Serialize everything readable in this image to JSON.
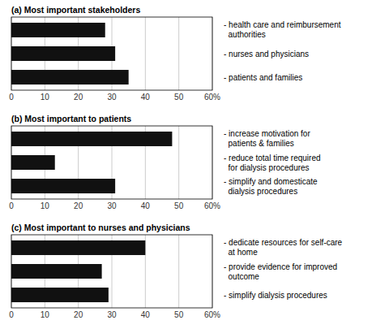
{
  "chart_data": [
    {
      "type": "bar",
      "orientation": "horizontal",
      "title": "(a) Most important stakeholders",
      "categories": [
        "- health care and reimbursement\n  authorities",
        "- nurses and physicians",
        "- patients and families"
      ],
      "values": [
        28,
        31,
        35
      ],
      "color": "#111111",
      "xlim": [
        0,
        60
      ],
      "xticks": [
        0,
        10,
        20,
        30,
        40,
        50,
        {
          "value": 60,
          "label": "60%"
        }
      ],
      "grid": true
    },
    {
      "type": "bar",
      "orientation": "horizontal",
      "title": "(b) Most important to patients",
      "categories": [
        "- increase motivation for\n  patients & families",
        "- reduce total time required\n  for dialysis procedures",
        "- simplify and domesticate\n  dialysis procedures"
      ],
      "values": [
        48,
        13,
        31
      ],
      "color": "#111111",
      "xlim": [
        0,
        60
      ],
      "xticks": [
        0,
        10,
        20,
        30,
        40,
        50,
        {
          "value": 60,
          "label": "60%"
        }
      ],
      "grid": true
    },
    {
      "type": "bar",
      "orientation": "horizontal",
      "title": "(c) Most important to nurses and physicians",
      "categories": [
        "- dedicate resources for self-care\n  at home",
        "- provide evidence for improved\n  outcome",
        "- simplify dialysis procedures"
      ],
      "values": [
        40,
        27,
        29
      ],
      "color": "#111111",
      "xlim": [
        0,
        60
      ],
      "xticks": [
        0,
        10,
        20,
        30,
        40,
        50,
        {
          "value": 60,
          "label": "60%"
        }
      ],
      "grid": true
    }
  ]
}
